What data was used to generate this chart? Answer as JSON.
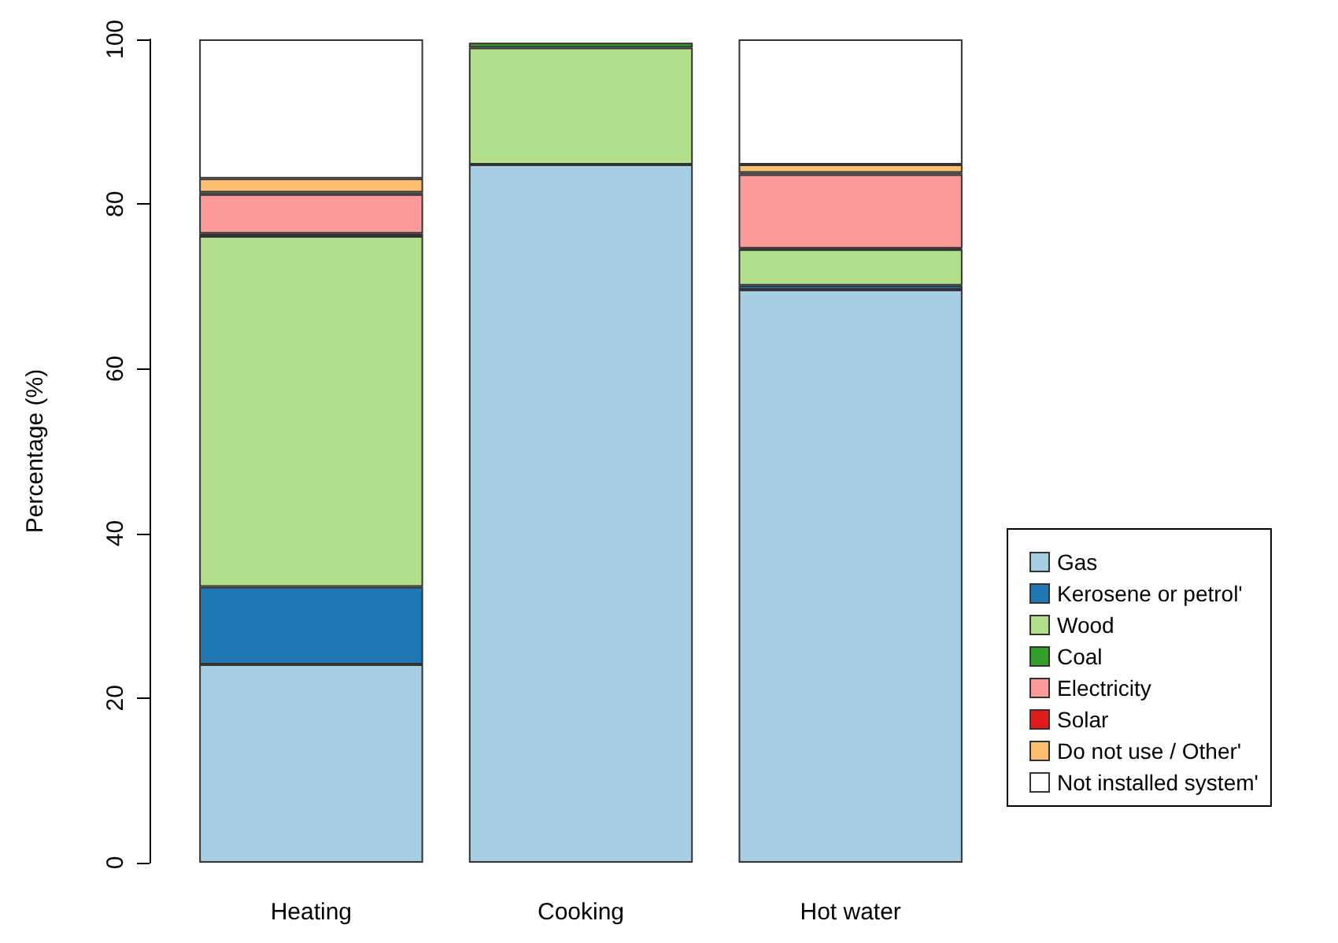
{
  "chart_data": {
    "type": "bar",
    "ylabel": "Percentage (%)",
    "categories": [
      "Heating",
      "Cooking",
      "Hot water"
    ],
    "stacked": true,
    "ylim": [
      0,
      100
    ],
    "yticks": [
      0,
      20,
      40,
      60,
      80,
      100
    ],
    "grid": false,
    "legend": "bottom right",
    "series": [
      {
        "name": "Gas",
        "color": "#a6cee3",
        "values": [
          24.1,
          84.8,
          69.6
        ]
      },
      {
        "name": "Kerosene or petrol'",
        "color": "#1f78b4",
        "values": [
          9.4,
          null,
          0.5
        ]
      },
      {
        "name": "Wood",
        "color": "#b2df8a",
        "values": [
          42.6,
          14.2,
          4.4
        ]
      },
      {
        "name": "Coal",
        "color": "#33a02c",
        "values": [
          0.3,
          0.6,
          0.1
        ]
      },
      {
        "name": "Electricity",
        "color": "#fb9a99",
        "values": [
          4.8,
          null,
          9.0
        ]
      },
      {
        "name": "Solar",
        "color": "#e31a1c",
        "values": [
          0.2,
          null,
          0.2
        ]
      },
      {
        "name": "Do not use / Other'",
        "color": "#fdbf6f",
        "values": [
          1.7,
          null,
          1.0
        ]
      },
      {
        "name": "Not installed system'",
        "color": "#ffffff",
        "values": [
          16.9,
          null,
          15.2
        ]
      }
    ]
  }
}
